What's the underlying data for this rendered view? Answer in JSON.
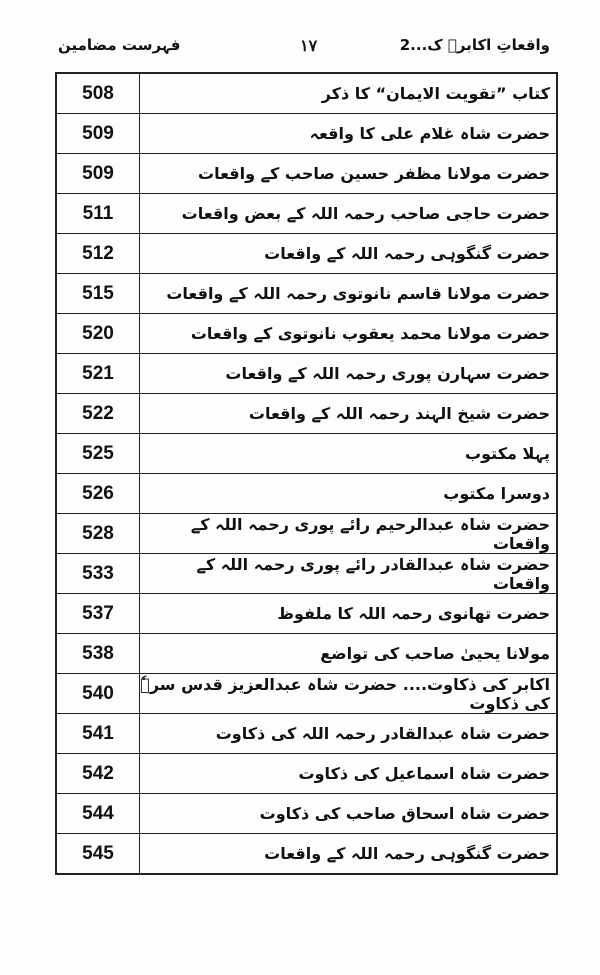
{
  "header": {
    "right": "واقعاتِ اکابرؒ ک...2",
    "page_number": "١٧",
    "left": "فہرست مضامین"
  },
  "rows": [
    {
      "title": "کتاب ”تقویت الایمان“ کا ذکر",
      "page": "508"
    },
    {
      "title": "حضرت شاہ غلام علی کا واقعہ",
      "page": "509"
    },
    {
      "title": "حضرت مولانا مظفر حسین صاحب کے واقعات",
      "page": "509"
    },
    {
      "title": "حضرت حاجی صاحب رحمہ اللہ کے بعض واقعات",
      "page": "511"
    },
    {
      "title": "حضرت گنگوہی رحمہ اللہ کے واقعات",
      "page": "512"
    },
    {
      "title": "حضرت مولانا قاسم نانوتوی رحمہ اللہ کے واقعات",
      "page": "515"
    },
    {
      "title": "حضرت مولانا محمد یعقوب نانوتوی کے واقعات",
      "page": "520"
    },
    {
      "title": "حضرت سہارن پوری رحمہ اللہ کے واقعات",
      "page": "521"
    },
    {
      "title": "حضرت شیخ الہند رحمہ اللہ کے واقعات",
      "page": "522"
    },
    {
      "title": "پہلا مکتوب",
      "page": "525"
    },
    {
      "title": "دوسرا مکتوب",
      "page": "526"
    },
    {
      "title": "حضرت شاہ عبدالرحیم رائے پوری رحمہ اللہ کے واقعات",
      "page": "528"
    },
    {
      "title": "حضرت شاہ عبدالقادر رائے پوری رحمہ اللہ کے واقعات",
      "page": "533"
    },
    {
      "title": "حضرت تھانوی رحمہ اللہ کا ملفوظ",
      "page": "537"
    },
    {
      "title": "مولانا یحییٰ صاحب کی تواضع",
      "page": "538"
    },
    {
      "title": "اکابر کی ذکاوت.... حضرت شاہ عبدالعزیز قدس سرہٗ کی ذکاوت",
      "page": "540"
    },
    {
      "title": "حضرت شاہ عبدالقادر رحمہ اللہ کی ذکاوت",
      "page": "541"
    },
    {
      "title": "حضرت شاہ اسماعیل کی ذکاوت",
      "page": "542"
    },
    {
      "title": "حضرت شاہ اسحاق صاحب کی ذکاوت",
      "page": "544"
    },
    {
      "title": "حضرت گنگوہی رحمہ اللہ کے واقعات",
      "page": "545"
    }
  ]
}
